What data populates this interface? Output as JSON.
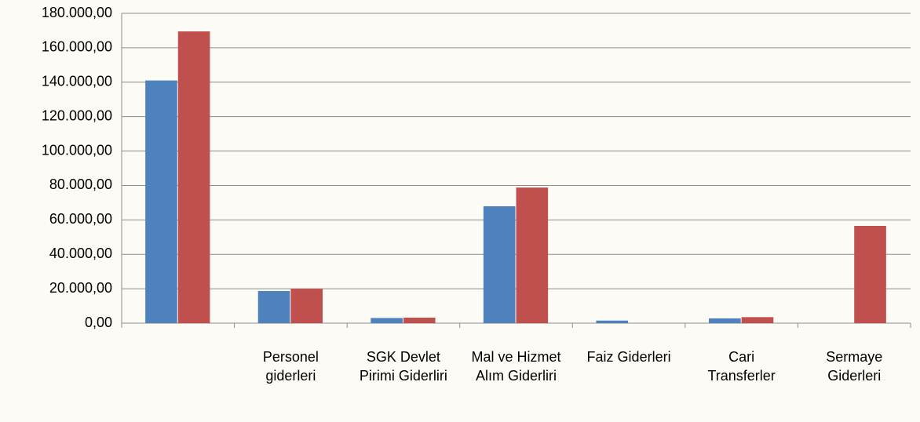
{
  "chart_data": {
    "type": "bar",
    "categories": [
      null,
      "Personel giderleri",
      "SGK Devlet Pirimi Giderliri",
      "Mal ve Hizmet Alım Giderliri",
      "Faiz Giderleri",
      "Cari Transferler",
      "Sermaye Giderleri"
    ],
    "series": [
      {
        "color": "#4f81bd",
        "values": [
          141000,
          18700,
          3000,
          67900,
          1500,
          2800,
          0
        ]
      },
      {
        "color": "#c0504d",
        "values": [
          169500,
          20000,
          3200,
          78800,
          0,
          3500,
          56500
        ]
      }
    ],
    "ylim": [
      0,
      180000
    ],
    "yticks": [
      {
        "value": 0,
        "label": "0,00"
      },
      {
        "value": 20000,
        "label": "20.000,00"
      },
      {
        "value": 40000,
        "label": "40.000,00"
      },
      {
        "value": 60000,
        "label": "60.000,00"
      },
      {
        "value": 80000,
        "label": "80.000,00"
      },
      {
        "value": 100000,
        "label": "100.000,00"
      },
      {
        "value": 120000,
        "label": "120.000,00"
      },
      {
        "value": 140000,
        "label": "140.000,00"
      },
      {
        "value": 160000,
        "label": "160.000,00"
      },
      {
        "value": 180000,
        "label": "180.000,00"
      }
    ],
    "grid": true
  }
}
